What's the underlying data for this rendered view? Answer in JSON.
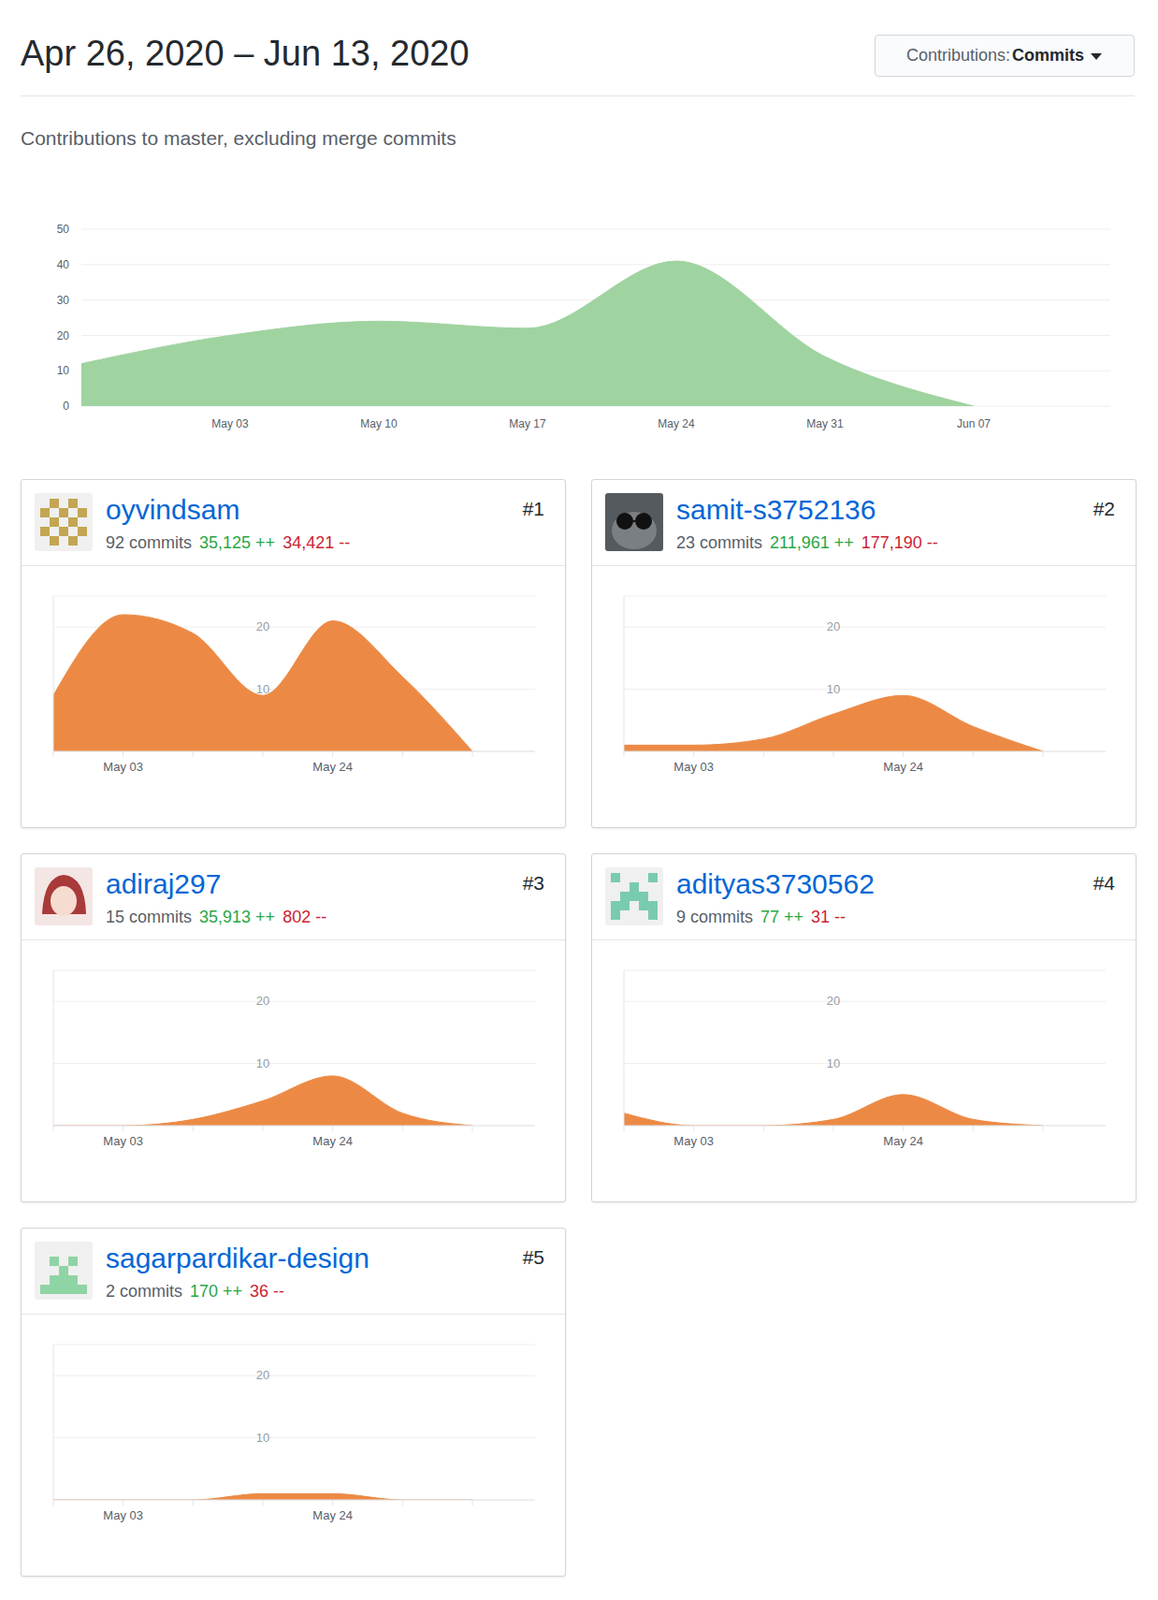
{
  "header": {
    "title": "Apr 26, 2020 – Jun 13, 2020",
    "filter_label": "Contributions:",
    "filter_value": "Commits",
    "subtitle": "Contributions to master, excluding merge commits"
  },
  "chart_data": [
    {
      "type": "area",
      "categories": [
        null,
        "May 03",
        "May 10",
        "May 17",
        "May 24",
        "May 31",
        "Jun 07"
      ],
      "values": [
        12,
        20,
        24,
        22,
        41,
        14,
        0
      ],
      "color": "#9fd3a0",
      "ylim": [
        0,
        50
      ],
      "yticks": [
        0,
        10,
        20,
        30,
        40,
        50
      ],
      "grid": true
    },
    {
      "type": "area",
      "title": "oyvindsam",
      "rank": "#1",
      "commits": "92 commits",
      "additions": "35,125 ++",
      "deletions": "34,421 --",
      "categories": [
        null,
        "May 03",
        null,
        null,
        "May 24",
        null,
        null
      ],
      "values": [
        9,
        22,
        19,
        9,
        21,
        12,
        0
      ],
      "color": "#ec8a45",
      "ylim": [
        0,
        25
      ],
      "yticks": [
        10,
        20
      ],
      "grid": true
    },
    {
      "type": "area",
      "title": "samit-s3752136",
      "rank": "#2",
      "commits": "23 commits",
      "additions": "211,961 ++",
      "deletions": "177,190 --",
      "categories": [
        null,
        "May 03",
        null,
        null,
        "May 24",
        null,
        null
      ],
      "values": [
        1,
        1,
        2,
        6,
        9,
        4,
        0
      ],
      "color": "#ec8a45",
      "ylim": [
        0,
        25
      ],
      "yticks": [
        10,
        20
      ],
      "grid": true
    },
    {
      "type": "area",
      "title": "adiraj297",
      "rank": "#3",
      "commits": "15 commits",
      "additions": "35,913 ++",
      "deletions": "802 --",
      "categories": [
        null,
        "May 03",
        null,
        null,
        "May 24",
        null,
        null
      ],
      "values": [
        0,
        0,
        1,
        4,
        8,
        2,
        0
      ],
      "color": "#ec8a45",
      "ylim": [
        0,
        25
      ],
      "yticks": [
        10,
        20
      ],
      "grid": true
    },
    {
      "type": "area",
      "title": "adityas3730562",
      "rank": "#4",
      "commits": "9 commits",
      "additions": "77 ++",
      "deletions": "31 --",
      "categories": [
        null,
        "May 03",
        null,
        null,
        "May 24",
        null,
        null
      ],
      "values": [
        2,
        0,
        0,
        1,
        5,
        1,
        0
      ],
      "color": "#ec8a45",
      "ylim": [
        0,
        25
      ],
      "yticks": [
        10,
        20
      ],
      "grid": true
    },
    {
      "type": "area",
      "title": "sagarpardikar-design",
      "rank": "#5",
      "commits": "2 commits",
      "additions": "170 ++",
      "deletions": "36 --",
      "categories": [
        null,
        "May 03",
        null,
        null,
        "May 24",
        null,
        null
      ],
      "values": [
        0,
        0,
        0,
        1,
        1,
        0,
        0
      ],
      "color": "#ec8a45",
      "ylim": [
        0,
        25
      ],
      "yticks": [
        10,
        20
      ],
      "grid": true
    }
  ]
}
